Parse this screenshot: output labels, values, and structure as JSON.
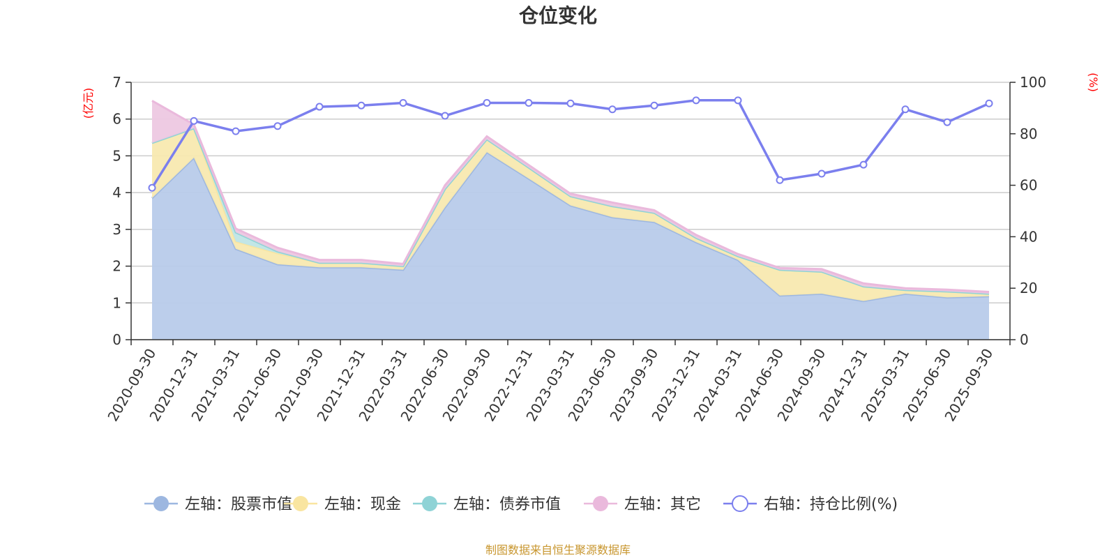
{
  "chart_data": {
    "type": "area",
    "title": "仓位变化",
    "left_unit": "(亿元)",
    "right_unit": "(%)",
    "categories": [
      "2020-09-30",
      "2020-12-31",
      "2021-03-31",
      "2021-06-30",
      "2021-09-30",
      "2021-12-31",
      "2022-03-31",
      "2022-06-30",
      "2022-09-30",
      "2022-12-31",
      "2023-03-31",
      "2023-06-30",
      "2023-09-30",
      "2023-12-31",
      "2024-03-31",
      "2024-06-30",
      "2024-09-30",
      "2024-12-31",
      "2025-03-31",
      "2025-06-30",
      "2025-09-30"
    ],
    "left_axis": {
      "min": 0,
      "max": 7,
      "ticks": [
        "0",
        "1",
        "2",
        "3",
        "4",
        "5",
        "6",
        "7"
      ]
    },
    "right_axis": {
      "min": 0,
      "max": 100,
      "ticks": [
        "0",
        "20",
        "40",
        "60",
        "80",
        "100"
      ]
    },
    "series": [
      {
        "name": "左轴：股票市值",
        "axis": "left",
        "color": "#9db7e0",
        "fill": "#b8cbea",
        "values": [
          3.85,
          4.95,
          2.47,
          2.05,
          1.97,
          1.97,
          1.9,
          3.6,
          5.1,
          4.38,
          3.65,
          3.33,
          3.2,
          2.65,
          2.17,
          1.2,
          1.25,
          1.05,
          1.25,
          1.15,
          1.18
        ]
      },
      {
        "name": "左轴：现金",
        "axis": "left",
        "color": "#f9e5a0",
        "fill": "#f8e9b0",
        "values": [
          1.5,
          0.8,
          0.2,
          0.3,
          0.12,
          0.12,
          0.1,
          0.5,
          0.35,
          0.3,
          0.25,
          0.3,
          0.25,
          0.12,
          0.1,
          0.7,
          0.6,
          0.4,
          0.1,
          0.16,
          0.07
        ]
      },
      {
        "name": "左轴：债券市值",
        "axis": "left",
        "color": "#8fd3d6",
        "fill": "#bfe5e6",
        "values": [
          0,
          0,
          0.25,
          0.05,
          0,
          0,
          0,
          0,
          0,
          0,
          0,
          0,
          0,
          0,
          0,
          0,
          0,
          0,
          0,
          0,
          0
        ]
      },
      {
        "name": "左轴：其它",
        "axis": "left",
        "color": "#eab9dc",
        "fill": "#edc8e1",
        "values": [
          1.15,
          0.1,
          0.1,
          0.1,
          0.08,
          0.08,
          0.06,
          0.1,
          0.08,
          0.07,
          0.07,
          0.1,
          0.07,
          0.08,
          0.06,
          0.05,
          0.07,
          0.08,
          0.05,
          0.05,
          0.05
        ]
      },
      {
        "name": "右轴：持仓比例(%)",
        "axis": "right",
        "color": "#7b7fee",
        "values": [
          59,
          85,
          81,
          83,
          90.5,
          91,
          92,
          87,
          92,
          92,
          91.8,
          89.5,
          91,
          93,
          93,
          62,
          64.5,
          68,
          89.5,
          84.5,
          91.8
        ]
      }
    ],
    "legend_position": "bottom",
    "grid": true
  },
  "source_text": "制图数据来自恒生聚源数据库"
}
